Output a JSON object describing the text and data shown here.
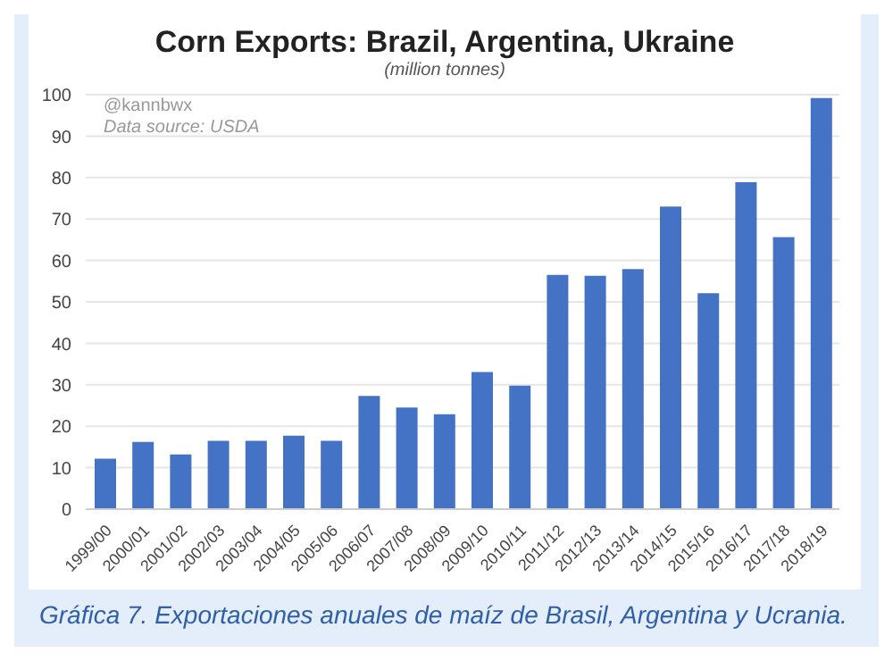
{
  "chart_data": {
    "type": "bar",
    "title": "Corn Exports: Brazil, Argentina, Ukraine",
    "subtitle": "(million tonnes)",
    "categories": [
      "1999/00",
      "2000/01",
      "2001/02",
      "2002/03",
      "2003/04",
      "2004/05",
      "2005/06",
      "2006/07",
      "2007/08",
      "2008/09",
      "2009/10",
      "2010/11",
      "2011/12",
      "2012/13",
      "2013/14",
      "2014/15",
      "2015/16",
      "2016/17",
      "2017/18",
      "2018/19"
    ],
    "values": [
      12.2,
      16.2,
      13.2,
      16.5,
      16.5,
      17.7,
      16.5,
      27.3,
      24.5,
      22.9,
      33.1,
      29.8,
      56.5,
      56.3,
      57.9,
      73,
      52.1,
      78.9,
      65.6,
      99.2
    ],
    "color": "#4472c4",
    "ylim": [
      0,
      100
    ],
    "yticks": [
      0,
      10,
      20,
      30,
      40,
      50,
      60,
      70,
      80,
      90,
      100
    ],
    "grid": "y",
    "legend": false,
    "annotations": [
      "@kannbwx",
      "Data source: USDA",
      "Gráfica 7. Exportaciones anuales de maíz de Brasil, Argentina y Ucrania."
    ]
  }
}
